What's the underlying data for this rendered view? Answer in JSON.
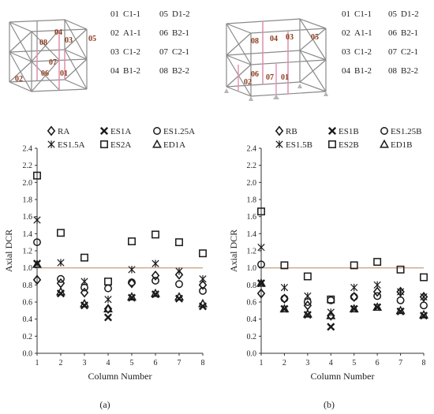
{
  "structure_diagrams": [
    {
      "column_labels": [
        "08",
        "04",
        "03",
        "05",
        "07",
        "02",
        "06",
        "01"
      ],
      "key": [
        {
          "code": "01",
          "name": "C1-1"
        },
        {
          "code": "05",
          "name": "D1-2"
        },
        {
          "code": "02",
          "name": "A1-1"
        },
        {
          "code": "06",
          "name": "B2-1"
        },
        {
          "code": "03",
          "name": "C1-2"
        },
        {
          "code": "07",
          "name": "C2-1"
        },
        {
          "code": "04",
          "name": "B1-2"
        },
        {
          "code": "08",
          "name": "B2-2"
        }
      ]
    },
    {
      "column_labels": [
        "08",
        "04",
        "03",
        "05",
        "02",
        "06",
        "07",
        "01"
      ],
      "key": [
        {
          "code": "01",
          "name": "C1-1"
        },
        {
          "code": "05",
          "name": "D1-2"
        },
        {
          "code": "02",
          "name": "A1-1"
        },
        {
          "code": "06",
          "name": "B2-1"
        },
        {
          "code": "03",
          "name": "C1-2"
        },
        {
          "code": "07",
          "name": "C2-1"
        },
        {
          "code": "04",
          "name": "B1-2"
        },
        {
          "code": "08",
          "name": "B2-2"
        }
      ]
    }
  ],
  "chart_data": [
    {
      "type": "scatter",
      "panel_label": "(a)",
      "xlabel": "Column Number",
      "ylabel": "Axial DCR",
      "x": [
        1,
        2,
        3,
        4,
        5,
        6,
        7,
        8
      ],
      "xlim": [
        1,
        8
      ],
      "ylim": [
        0,
        2.4
      ],
      "yticks": [
        "0.0",
        "0.2",
        "0.4",
        "0.6",
        "0.8",
        "1.0",
        "1.2",
        "1.4",
        "1.6",
        "1.8",
        "2.0",
        "2.2",
        "2.4"
      ],
      "xticks": [
        "1",
        "2",
        "3",
        "4",
        "5",
        "6",
        "7",
        "8"
      ],
      "reference_line": {
        "y": 1.0,
        "color": "#c8a888"
      },
      "series": [
        {
          "name": "RA",
          "marker": "diamond",
          "values": [
            0.86,
            0.82,
            0.71,
            0.52,
            0.82,
            0.91,
            0.92,
            0.8
          ]
        },
        {
          "name": "ES1A",
          "marker": "x",
          "values": [
            1.05,
            0.7,
            0.56,
            0.42,
            0.65,
            0.69,
            0.64,
            0.55
          ]
        },
        {
          "name": "ES1.25A",
          "marker": "circle",
          "values": [
            1.3,
            0.87,
            0.77,
            0.76,
            0.83,
            0.85,
            0.81,
            0.73
          ]
        },
        {
          "name": "ES1.5A",
          "marker": "asterisk",
          "values": [
            1.56,
            1.06,
            0.84,
            0.63,
            0.98,
            1.05,
            0.96,
            0.87
          ]
        },
        {
          "name": "ES2A",
          "marker": "square",
          "values": [
            2.08,
            1.41,
            1.12,
            0.84,
            1.31,
            1.39,
            1.3,
            1.17
          ]
        },
        {
          "name": "ED1A",
          "marker": "triangle",
          "values": [
            1.04,
            0.72,
            0.58,
            0.52,
            0.66,
            0.7,
            0.66,
            0.58
          ]
        }
      ]
    },
    {
      "type": "scatter",
      "panel_label": "(b)",
      "xlabel": "Column Number",
      "ylabel": "Axial DCR",
      "x": [
        1,
        2,
        3,
        4,
        5,
        6,
        7,
        8
      ],
      "xlim": [
        1,
        8
      ],
      "ylim": [
        0,
        2.4
      ],
      "yticks": [
        "0.0",
        "0.2",
        "0.4",
        "0.6",
        "0.8",
        "1.0",
        "1.2",
        "1.4",
        "1.6",
        "1.8",
        "2.0",
        "2.2",
        "2.4"
      ],
      "xticks": [
        "1",
        "2",
        "3",
        "4",
        "5",
        "6",
        "7",
        "8"
      ],
      "reference_line": {
        "y": 1.0,
        "color": "#c8a888"
      },
      "series": [
        {
          "name": "RB",
          "marker": "diamond",
          "values": [
            0.7,
            0.64,
            0.56,
            0.44,
            0.66,
            0.72,
            0.72,
            0.66
          ]
        },
        {
          "name": "ES1B",
          "marker": "x",
          "values": [
            0.82,
            0.52,
            0.45,
            0.31,
            0.52,
            0.54,
            0.49,
            0.44
          ]
        },
        {
          "name": "ES1.25B",
          "marker": "circle",
          "values": [
            1.04,
            0.64,
            0.6,
            0.62,
            0.66,
            0.67,
            0.62,
            0.56
          ]
        },
        {
          "name": "ES1.5B",
          "marker": "asterisk",
          "values": [
            1.24,
            0.77,
            0.67,
            0.48,
            0.77,
            0.8,
            0.72,
            0.66
          ]
        },
        {
          "name": "ES2B",
          "marker": "square",
          "values": [
            1.66,
            1.03,
            0.9,
            0.63,
            1.03,
            1.07,
            0.98,
            0.89
          ]
        },
        {
          "name": "ED1B",
          "marker": "triangle",
          "values": [
            0.82,
            0.52,
            0.46,
            0.44,
            0.52,
            0.54,
            0.5,
            0.45
          ]
        }
      ]
    }
  ]
}
